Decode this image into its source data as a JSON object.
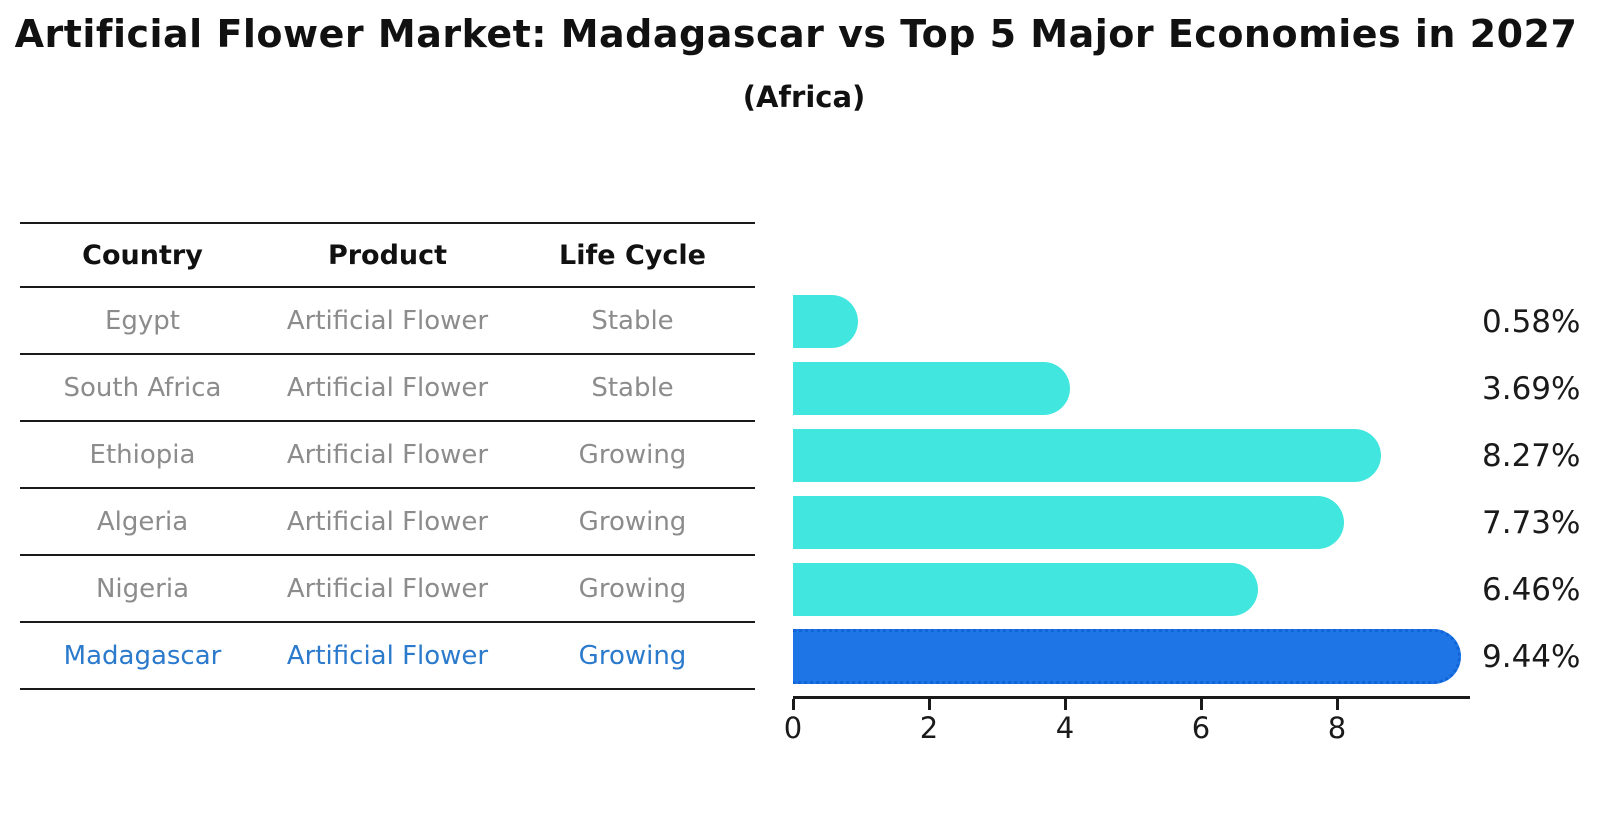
{
  "page": {
    "title": "Artificial Flower Market: Madagascar vs Top 5 Major Economies in 2027",
    "subtitle": "(Africa)"
  },
  "table": {
    "headers": [
      "Country",
      "Product",
      "Life Cycle"
    ],
    "rows": [
      {
        "country": "Egypt",
        "product": "Artificial Flower",
        "life_cycle": "Stable"
      },
      {
        "country": "South Africa",
        "product": "Artificial Flower",
        "life_cycle": "Stable"
      },
      {
        "country": "Ethiopia",
        "product": "Artificial Flower",
        "life_cycle": "Growing"
      },
      {
        "country": "Algeria",
        "product": "Artificial Flower",
        "life_cycle": "Growing"
      },
      {
        "country": "Nigeria",
        "product": "Artificial Flower",
        "life_cycle": "Growing"
      },
      {
        "country": "Madagascar",
        "product": "Artificial Flower",
        "life_cycle": "Growing"
      }
    ],
    "highlight_row_index": 5
  },
  "chart_data": {
    "type": "bar",
    "orientation": "horizontal",
    "title": "Artificial Flower Market: Madagascar vs Top 5 Major Economies in 2027",
    "subtitle": "(Africa)",
    "categories": [
      "Egypt",
      "South Africa",
      "Ethiopia",
      "Algeria",
      "Nigeria",
      "Madagascar"
    ],
    "values": [
      0.58,
      3.69,
      8.27,
      7.73,
      6.46,
      9.44
    ],
    "value_labels": [
      "0.58%",
      "3.69%",
      "8.27%",
      "7.73%",
      "6.46%",
      "9.44%"
    ],
    "x_ticks": [
      0,
      2,
      4,
      6,
      8
    ],
    "x_tick_labels": [
      "0",
      "2",
      "4",
      "6",
      "8"
    ],
    "xlim": [
      0,
      9.96
    ],
    "grid": false,
    "legend": false,
    "highlight_index": 5,
    "colors": {
      "bar": "#41e6df",
      "highlight_bar": "#1e76e6",
      "highlight_border": "#1063d8",
      "highlight_text": "#2b7acc",
      "table_text": "#8c8c8c",
      "heading_text": "#111111",
      "axis_text": "#1a1a1a"
    }
  }
}
